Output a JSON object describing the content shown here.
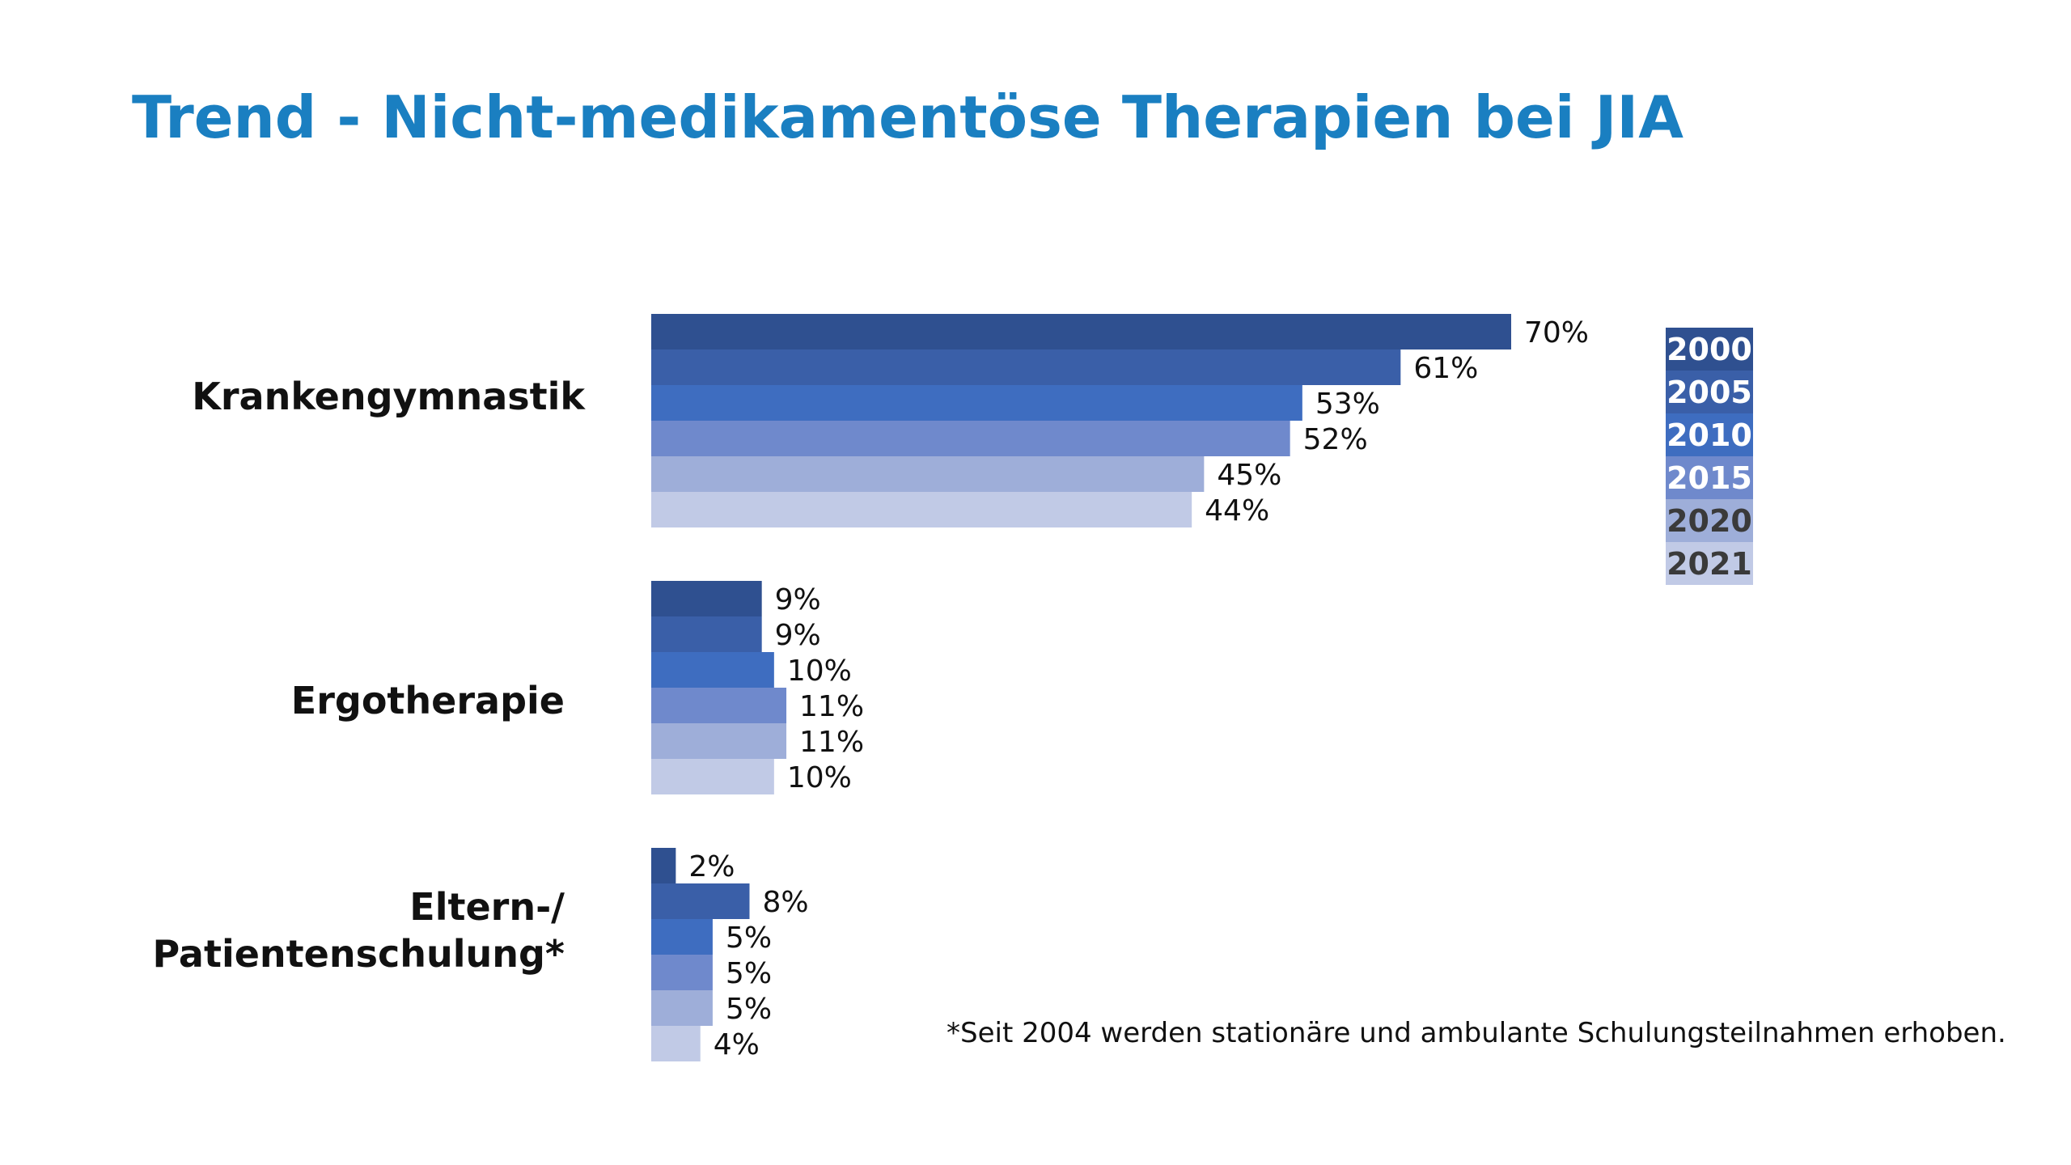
{
  "title": "Trend - Nicht-medikamentöse Therapien bei JIA",
  "footnote": "*Seit 2004 werden stationäre und ambulante Schulungsteilnahmen erhoben.",
  "chart_data": {
    "type": "bar",
    "orientation": "horizontal",
    "categories": [
      "Krankengymnastik",
      "Ergotherapie",
      "Eltern-/ Patientenschulung*"
    ],
    "category_lines": [
      [
        "Krankengymnastik"
      ],
      [
        "Ergotherapie"
      ],
      [
        "Eltern-/",
        "Patientenschulung*"
      ]
    ],
    "series": [
      {
        "name": "2000",
        "values": [
          70,
          9,
          2
        ],
        "labels": [
          "70%",
          "9%",
          "2%"
        ],
        "color": "#2f5090"
      },
      {
        "name": "2005",
        "values": [
          61,
          9,
          8
        ],
        "labels": [
          "61%",
          "9%",
          "8%"
        ],
        "color": "#3a5fa8"
      },
      {
        "name": "2010",
        "values": [
          53,
          10,
          5
        ],
        "labels": [
          "53%",
          "10%",
          "5%"
        ],
        "color": "#3e6dc0"
      },
      {
        "name": "2015",
        "values": [
          52,
          11,
          5
        ],
        "labels": [
          "52%",
          "11%",
          "5%"
        ],
        "color": "#6f89cc"
      },
      {
        "name": "2020",
        "values": [
          45,
          11,
          5
        ],
        "labels": [
          "45%",
          "11%",
          "5%"
        ],
        "color": "#9eaed9"
      },
      {
        "name": "2021",
        "values": [
          44,
          10,
          4
        ],
        "labels": [
          "44%",
          "10%",
          "4%"
        ],
        "color": "#c1cae6"
      }
    ],
    "legend_text_colors": [
      "#ffffff",
      "#ffffff",
      "#ffffff",
      "#ffffff",
      "#3a3a3a",
      "#3a3a3a"
    ],
    "xlim": [
      0,
      70
    ],
    "grid": false,
    "legend": "right"
  }
}
